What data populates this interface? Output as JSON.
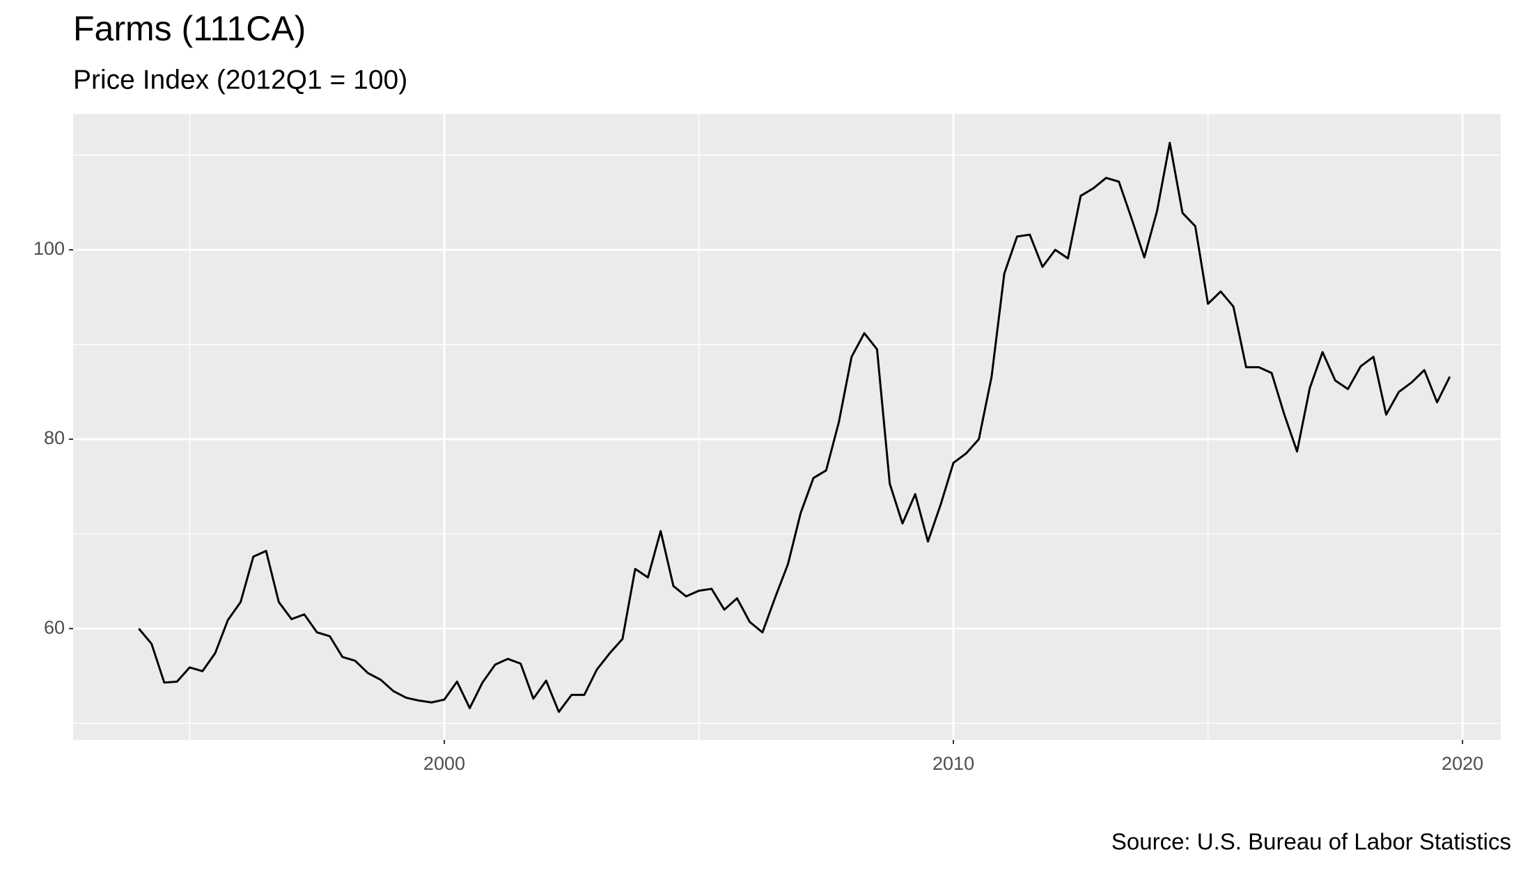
{
  "chart_data": {
    "type": "line",
    "title": "Farms (111CA)",
    "subtitle": "Price Index (2012Q1 = 100)",
    "caption": "Source: U.S. Bureau of Labor Statistics",
    "x": [
      1994,
      1994.25,
      1994.5,
      1994.75,
      1995,
      1995.25,
      1995.5,
      1995.75,
      1996,
      1996.25,
      1996.5,
      1996.75,
      1997,
      1997.25,
      1997.5,
      1997.75,
      1998,
      1998.25,
      1998.5,
      1998.75,
      1999,
      1999.25,
      1999.5,
      1999.75,
      2000,
      2000.25,
      2000.5,
      2000.75,
      2001,
      2001.25,
      2001.5,
      2001.75,
      2002,
      2002.25,
      2002.5,
      2002.75,
      2003,
      2003.25,
      2003.5,
      2003.75,
      2004,
      2004.25,
      2004.5,
      2004.75,
      2005,
      2005.25,
      2005.5,
      2005.75,
      2006,
      2006.25,
      2006.5,
      2006.75,
      2007,
      2007.25,
      2007.5,
      2007.75,
      2008,
      2008.25,
      2008.5,
      2008.75,
      2009,
      2009.25,
      2009.5,
      2009.75,
      2010,
      2010.25,
      2010.5,
      2010.75,
      2011,
      2011.25,
      2011.5,
      2011.75,
      2012,
      2012.25,
      2012.5,
      2012.75,
      2013,
      2013.25,
      2013.5,
      2013.75,
      2014,
      2014.25,
      2014.5,
      2014.75,
      2015,
      2015.25,
      2015.5,
      2015.75,
      2016,
      2016.25,
      2016.5,
      2016.75,
      2017,
      2017.25,
      2017.5,
      2017.75,
      2018,
      2018.25,
      2018.5,
      2018.75,
      2019,
      2019.25,
      2019.5,
      2019.75
    ],
    "series": [
      {
        "name": "Price Index",
        "color": "#000000",
        "values": [
          60,
          58.4,
          54.3,
          54.4,
          55.9,
          55.5,
          57.4,
          60.9,
          62.8,
          67.6,
          68.2,
          62.8,
          61,
          61.5,
          59.6,
          59.2,
          57,
          56.6,
          55.3,
          54.6,
          53.4,
          52.7,
          52.4,
          52.2,
          52.5,
          54.4,
          51.6,
          54.3,
          56.2,
          56.8,
          56.3,
          52.6,
          54.5,
          51.2,
          53,
          53,
          55.7,
          57.4,
          58.9,
          66.3,
          65.4,
          70.3,
          64.5,
          63.4,
          64,
          64.2,
          62,
          63.2,
          60.7,
          59.6,
          63.3,
          66.8,
          72.2,
          75.9,
          76.7,
          81.8,
          88.7,
          91.2,
          89.5,
          75.3,
          71.1,
          74.2,
          69.2,
          73.1,
          77.5,
          78.5,
          80,
          86.6,
          97.5,
          101.4,
          101.6,
          98.2,
          100,
          99.1,
          105.7,
          106.5,
          107.6,
          107.2,
          103.3,
          99.2,
          104.1,
          111.3,
          103.9,
          102.5,
          94.3,
          95.6,
          94,
          87.6,
          87.6,
          87,
          82.6,
          78.7,
          85.4,
          89.2,
          86.2,
          85.3,
          87.7,
          88.7,
          82.6,
          85,
          86,
          87.3,
          83.9,
          86.6
        ]
      }
    ],
    "xlim": [
      1992.71,
      2020.75
    ],
    "xticks": [
      2000,
      2010,
      2020
    ],
    "ylim": [
      48.25,
      114.33
    ],
    "yticks": [
      60,
      80,
      100
    ],
    "grid": true
  }
}
